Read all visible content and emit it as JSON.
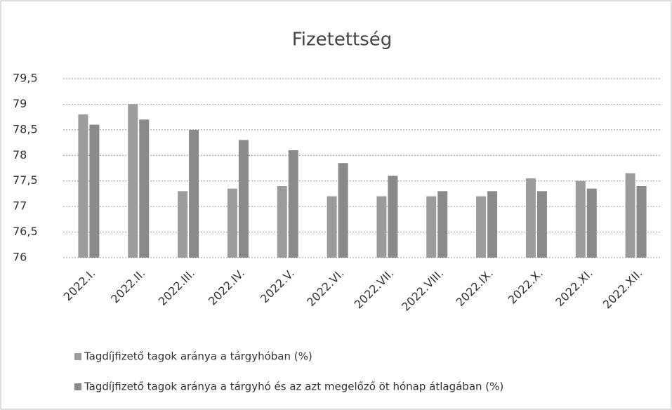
{
  "chart_data": {
    "type": "bar",
    "title": "Fizetettség",
    "categories": [
      "2022.I.",
      "2022.II.",
      "2022.III.",
      "2022.IV.",
      "2022.V.",
      "2022.VI.",
      "2022.VII.",
      "2022.VIII.",
      "2022.IX.",
      "2022.X.",
      "2022.XI.",
      "2022.XII."
    ],
    "series": [
      {
        "name": "Tagdíjfizető tagok aránya a tárgyhóban (%)",
        "color": "#9c9c9c",
        "values": [
          78.8,
          79.0,
          77.3,
          77.35,
          77.4,
          77.2,
          77.2,
          77.2,
          77.2,
          77.55,
          77.5,
          77.65
        ]
      },
      {
        "name": "Tagdíjfizető tagok aránya a tárgyhó és az azt megelőző öt hónap átlagában (%)",
        "color": "#8a8a8a",
        "values": [
          78.6,
          78.7,
          78.5,
          78.3,
          78.1,
          77.85,
          77.6,
          77.3,
          77.3,
          77.3,
          77.35,
          77.4
        ]
      }
    ],
    "ylim": [
      76,
      79.5
    ],
    "yticks": [
      76,
      {
        "value": 76.5,
        "label": "76,5"
      },
      77,
      {
        "value": 77.5,
        "label": "77,5"
      },
      78,
      {
        "value": 78.5,
        "label": "78,5"
      },
      79,
      {
        "value": 79.5,
        "label": "79,5"
      }
    ],
    "grid": true
  }
}
